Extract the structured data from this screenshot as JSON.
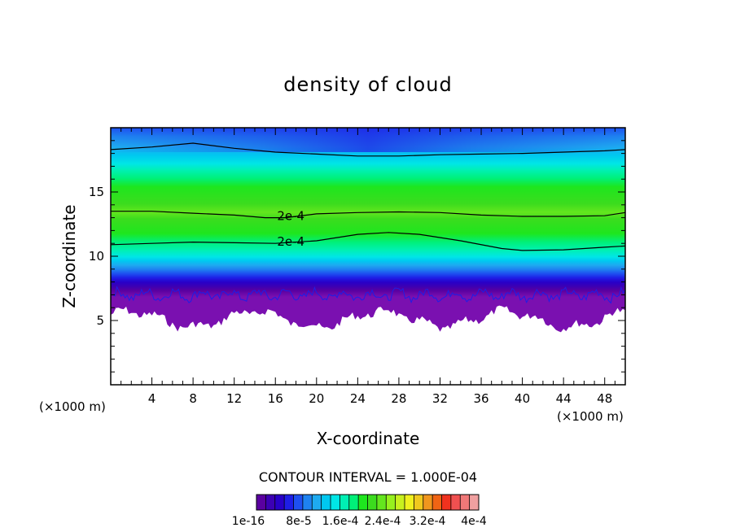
{
  "chart_data": {
    "type": "contour",
    "title": "density of cloud",
    "xlabel": "X-coordinate",
    "ylabel": "Z-coordinate",
    "x_unit": "(×1000 m)",
    "y_unit": "(×1000 m)",
    "xlim": [
      0,
      50
    ],
    "ylim": [
      0,
      20
    ],
    "x_ticks": [
      4,
      8,
      12,
      16,
      20,
      24,
      28,
      32,
      36,
      40,
      44,
      48
    ],
    "y_ticks": [
      5,
      10,
      15
    ],
    "contour_interval_text": "CONTOUR INTERVAL = 1.000E-04",
    "contour_labels": [
      {
        "text": "2e-4",
        "x": 17.5,
        "z": 13.1
      },
      {
        "text": "2e-4",
        "x": 17.5,
        "z": 11.1
      }
    ],
    "contour_lines": [
      {
        "name": "upper",
        "points": [
          [
            0,
            18.3
          ],
          [
            4,
            18.5
          ],
          [
            8,
            18.8
          ],
          [
            12,
            18.4
          ],
          [
            16,
            18.1
          ],
          [
            20,
            17.95
          ],
          [
            24,
            17.8
          ],
          [
            28,
            17.8
          ],
          [
            32,
            17.9
          ],
          [
            36,
            17.95
          ],
          [
            40,
            18.0
          ],
          [
            44,
            18.1
          ],
          [
            48,
            18.2
          ],
          [
            50,
            18.3
          ]
        ]
      },
      {
        "name": "2e-4 top",
        "points": [
          [
            0,
            13.5
          ],
          [
            4,
            13.5
          ],
          [
            8,
            13.35
          ],
          [
            12,
            13.2
          ],
          [
            15,
            13.0
          ],
          [
            17,
            13.0
          ],
          [
            20,
            13.3
          ],
          [
            24,
            13.4
          ],
          [
            28,
            13.45
          ],
          [
            32,
            13.4
          ],
          [
            36,
            13.2
          ],
          [
            40,
            13.1
          ],
          [
            44,
            13.1
          ],
          [
            48,
            13.15
          ],
          [
            50,
            13.4
          ]
        ]
      },
      {
        "name": "2e-4 bottom",
        "points": [
          [
            0,
            10.9
          ],
          [
            4,
            11.0
          ],
          [
            8,
            11.1
          ],
          [
            12,
            11.05
          ],
          [
            16,
            11.0
          ],
          [
            20,
            11.2
          ],
          [
            24,
            11.7
          ],
          [
            27,
            11.85
          ],
          [
            30,
            11.7
          ],
          [
            34,
            11.2
          ],
          [
            38,
            10.6
          ],
          [
            40,
            10.45
          ],
          [
            44,
            10.5
          ],
          [
            48,
            10.7
          ],
          [
            50,
            10.8
          ]
        ]
      }
    ],
    "colorbar": {
      "colors": [
        "#5a00a0",
        "#3c00b4",
        "#2800c8",
        "#1e1ee6",
        "#1e50f0",
        "#1e82f0",
        "#1eaaf0",
        "#00c8f0",
        "#00e6e6",
        "#00f0b4",
        "#00f078",
        "#1ee61e",
        "#3cdc1e",
        "#64e61e",
        "#96f01e",
        "#c8f01e",
        "#f0f01e",
        "#f0c81e",
        "#f0961e",
        "#f06414",
        "#f0321e",
        "#f05050",
        "#f07878",
        "#f0a0a0"
      ],
      "tick_labels": [
        "1e-16",
        "8e-5",
        "1.6e-4",
        "2.4e-4",
        "3.2e-4",
        "4e-4"
      ]
    }
  }
}
